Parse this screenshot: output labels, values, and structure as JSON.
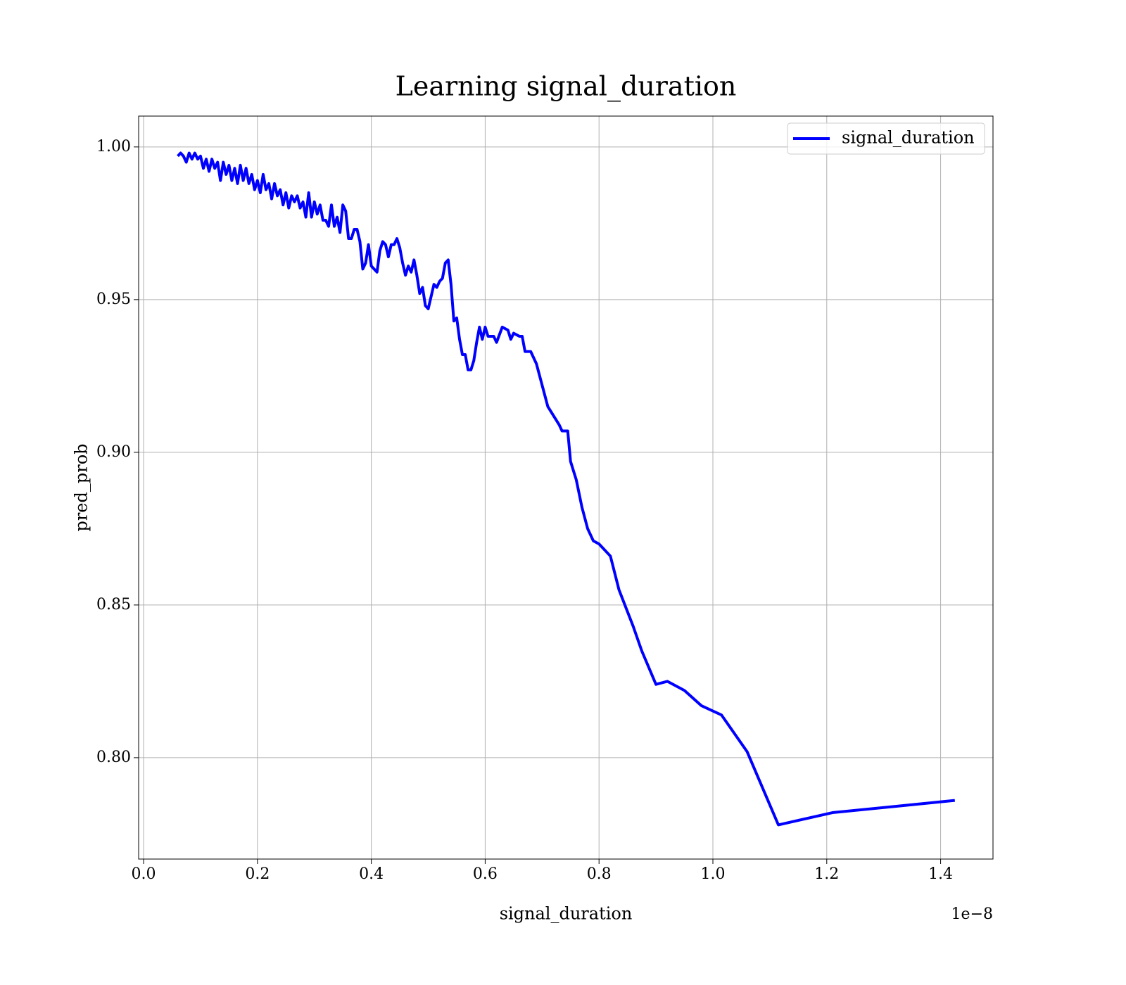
{
  "chart_data": {
    "type": "line",
    "title": "Learning signal_duration",
    "x_label": "signal_duration",
    "y_label": "pred_prob",
    "x_offset_label": "1e−8",
    "legend": "upper right",
    "grid": true,
    "xlim": [
      -0.0087,
      1.492
    ],
    "ylim": [
      0.7668,
      1.0101
    ],
    "xticks": [
      {
        "value": 0,
        "label": "0.0"
      },
      0.2,
      0.4,
      0.6,
      0.8,
      {
        "value": 1,
        "label": "1.0"
      },
      1.2,
      1.4
    ],
    "yticks": [
      {
        "value": 0.8,
        "label": "0.80"
      },
      0.85,
      {
        "value": 0.9,
        "label": "0.90"
      },
      0.95,
      {
        "value": 1,
        "label": "1.00"
      }
    ],
    "x": [
      0.06,
      0.065,
      0.07,
      0.075,
      0.08,
      0.085,
      0.09,
      0.095,
      0.1,
      0.105,
      0.11,
      0.115,
      0.12,
      0.125,
      0.13,
      0.135,
      0.14,
      0.145,
      0.15,
      0.155,
      0.16,
      0.165,
      0.17,
      0.175,
      0.18,
      0.185,
      0.19,
      0.195,
      0.2,
      0.205,
      0.21,
      0.215,
      0.22,
      0.225,
      0.23,
      0.235,
      0.24,
      0.245,
      0.25,
      0.255,
      0.26,
      0.265,
      0.27,
      0.275,
      0.28,
      0.285,
      0.29,
      0.295,
      0.3,
      0.305,
      0.31,
      0.315,
      0.32,
      0.325,
      0.33,
      0.335,
      0.34,
      0.345,
      0.35,
      0.355,
      0.36,
      0.365,
      0.37,
      0.375,
      0.38,
      0.385,
      0.39,
      0.395,
      0.4,
      0.405,
      0.41,
      0.415,
      0.42,
      0.425,
      0.43,
      0.435,
      0.44,
      0.445,
      0.45,
      0.455,
      0.46,
      0.465,
      0.47,
      0.475,
      0.48,
      0.485,
      0.49,
      0.495,
      0.5,
      0.51,
      0.515,
      0.52,
      0.525,
      0.53,
      0.535,
      0.54,
      0.545,
      0.55,
      0.555,
      0.56,
      0.565,
      0.57,
      0.575,
      0.58,
      0.585,
      0.59,
      0.595,
      0.6,
      0.605,
      0.615,
      0.62,
      0.63,
      0.64,
      0.645,
      0.65,
      0.66,
      0.665,
      0.67,
      0.68,
      0.69,
      0.71,
      0.72,
      0.73,
      0.735,
      0.745,
      0.75,
      0.76,
      0.77,
      0.78,
      0.79,
      0.8,
      0.82,
      0.835,
      0.86,
      0.875,
      0.9,
      0.92,
      0.95,
      0.98,
      1.015,
      1.06,
      1.115,
      1.21,
      1.425
    ],
    "series": [
      {
        "name": "signal_duration",
        "color": "#0000ff",
        "values": [
          0.997,
          0.998,
          0.997,
          0.995,
          0.998,
          0.996,
          0.998,
          0.996,
          0.997,
          0.993,
          0.996,
          0.992,
          0.996,
          0.993,
          0.995,
          0.989,
          0.995,
          0.991,
          0.994,
          0.989,
          0.993,
          0.988,
          0.994,
          0.989,
          0.993,
          0.988,
          0.991,
          0.986,
          0.989,
          0.985,
          0.991,
          0.986,
          0.988,
          0.983,
          0.988,
          0.984,
          0.986,
          0.981,
          0.985,
          0.98,
          0.984,
          0.982,
          0.984,
          0.98,
          0.982,
          0.977,
          0.985,
          0.977,
          0.982,
          0.978,
          0.981,
          0.976,
          0.976,
          0.974,
          0.981,
          0.974,
          0.977,
          0.972,
          0.981,
          0.979,
          0.97,
          0.97,
          0.973,
          0.973,
          0.969,
          0.96,
          0.962,
          0.968,
          0.961,
          0.96,
          0.959,
          0.966,
          0.969,
          0.968,
          0.964,
          0.968,
          0.968,
          0.97,
          0.967,
          0.962,
          0.958,
          0.961,
          0.959,
          0.963,
          0.958,
          0.952,
          0.954,
          0.948,
          0.947,
          0.955,
          0.954,
          0.956,
          0.957,
          0.962,
          0.963,
          0.955,
          0.943,
          0.944,
          0.937,
          0.932,
          0.932,
          0.927,
          0.927,
          0.93,
          0.936,
          0.941,
          0.937,
          0.941,
          0.938,
          0.938,
          0.936,
          0.941,
          0.94,
          0.937,
          0.939,
          0.938,
          0.938,
          0.933,
          0.933,
          0.929,
          0.915,
          0.912,
          0.909,
          0.907,
          0.907,
          0.897,
          0.891,
          0.882,
          0.875,
          0.871,
          0.87,
          0.866,
          0.855,
          0.843,
          0.835,
          0.824,
          0.825,
          0.822,
          0.817,
          0.814,
          0.802,
          0.778,
          0.782,
          0.786
        ]
      }
    ]
  }
}
